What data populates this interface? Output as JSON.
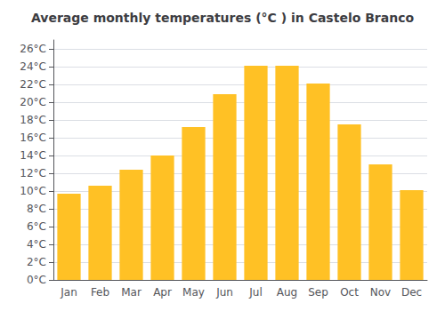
{
  "chart_data": {
    "type": "bar",
    "title": "Average monthly temperatures (°C ) in Castelo Branco",
    "categories": [
      "Jan",
      "Feb",
      "Mar",
      "Apr",
      "May",
      "Jun",
      "Jul",
      "Aug",
      "Sep",
      "Oct",
      "Nov",
      "Dec"
    ],
    "values": [
      9.7,
      10.6,
      12.4,
      14.0,
      17.2,
      20.9,
      24.1,
      24.1,
      22.1,
      17.5,
      13.0,
      10.1
    ],
    "color": "#FFC125",
    "ylim": [
      0,
      27
    ],
    "yticks": [
      {
        "value": 0,
        "label": "0°C"
      },
      {
        "value": 2,
        "label": "2°C"
      },
      {
        "value": 4,
        "label": "4°C"
      },
      {
        "value": 6,
        "label": "6°C"
      },
      {
        "value": 8,
        "label": "8°C"
      },
      {
        "value": 10,
        "label": "10°C"
      },
      {
        "value": 12,
        "label": "12°C"
      },
      {
        "value": 14,
        "label": "14°C"
      },
      {
        "value": 16,
        "label": "16°C"
      },
      {
        "value": 18,
        "label": "18°C"
      },
      {
        "value": 20,
        "label": "20°C"
      },
      {
        "value": 22,
        "label": "22°C"
      },
      {
        "value": 24,
        "label": "24°C"
      },
      {
        "value": 26,
        "label": "26°C"
      }
    ],
    "grid": true
  }
}
